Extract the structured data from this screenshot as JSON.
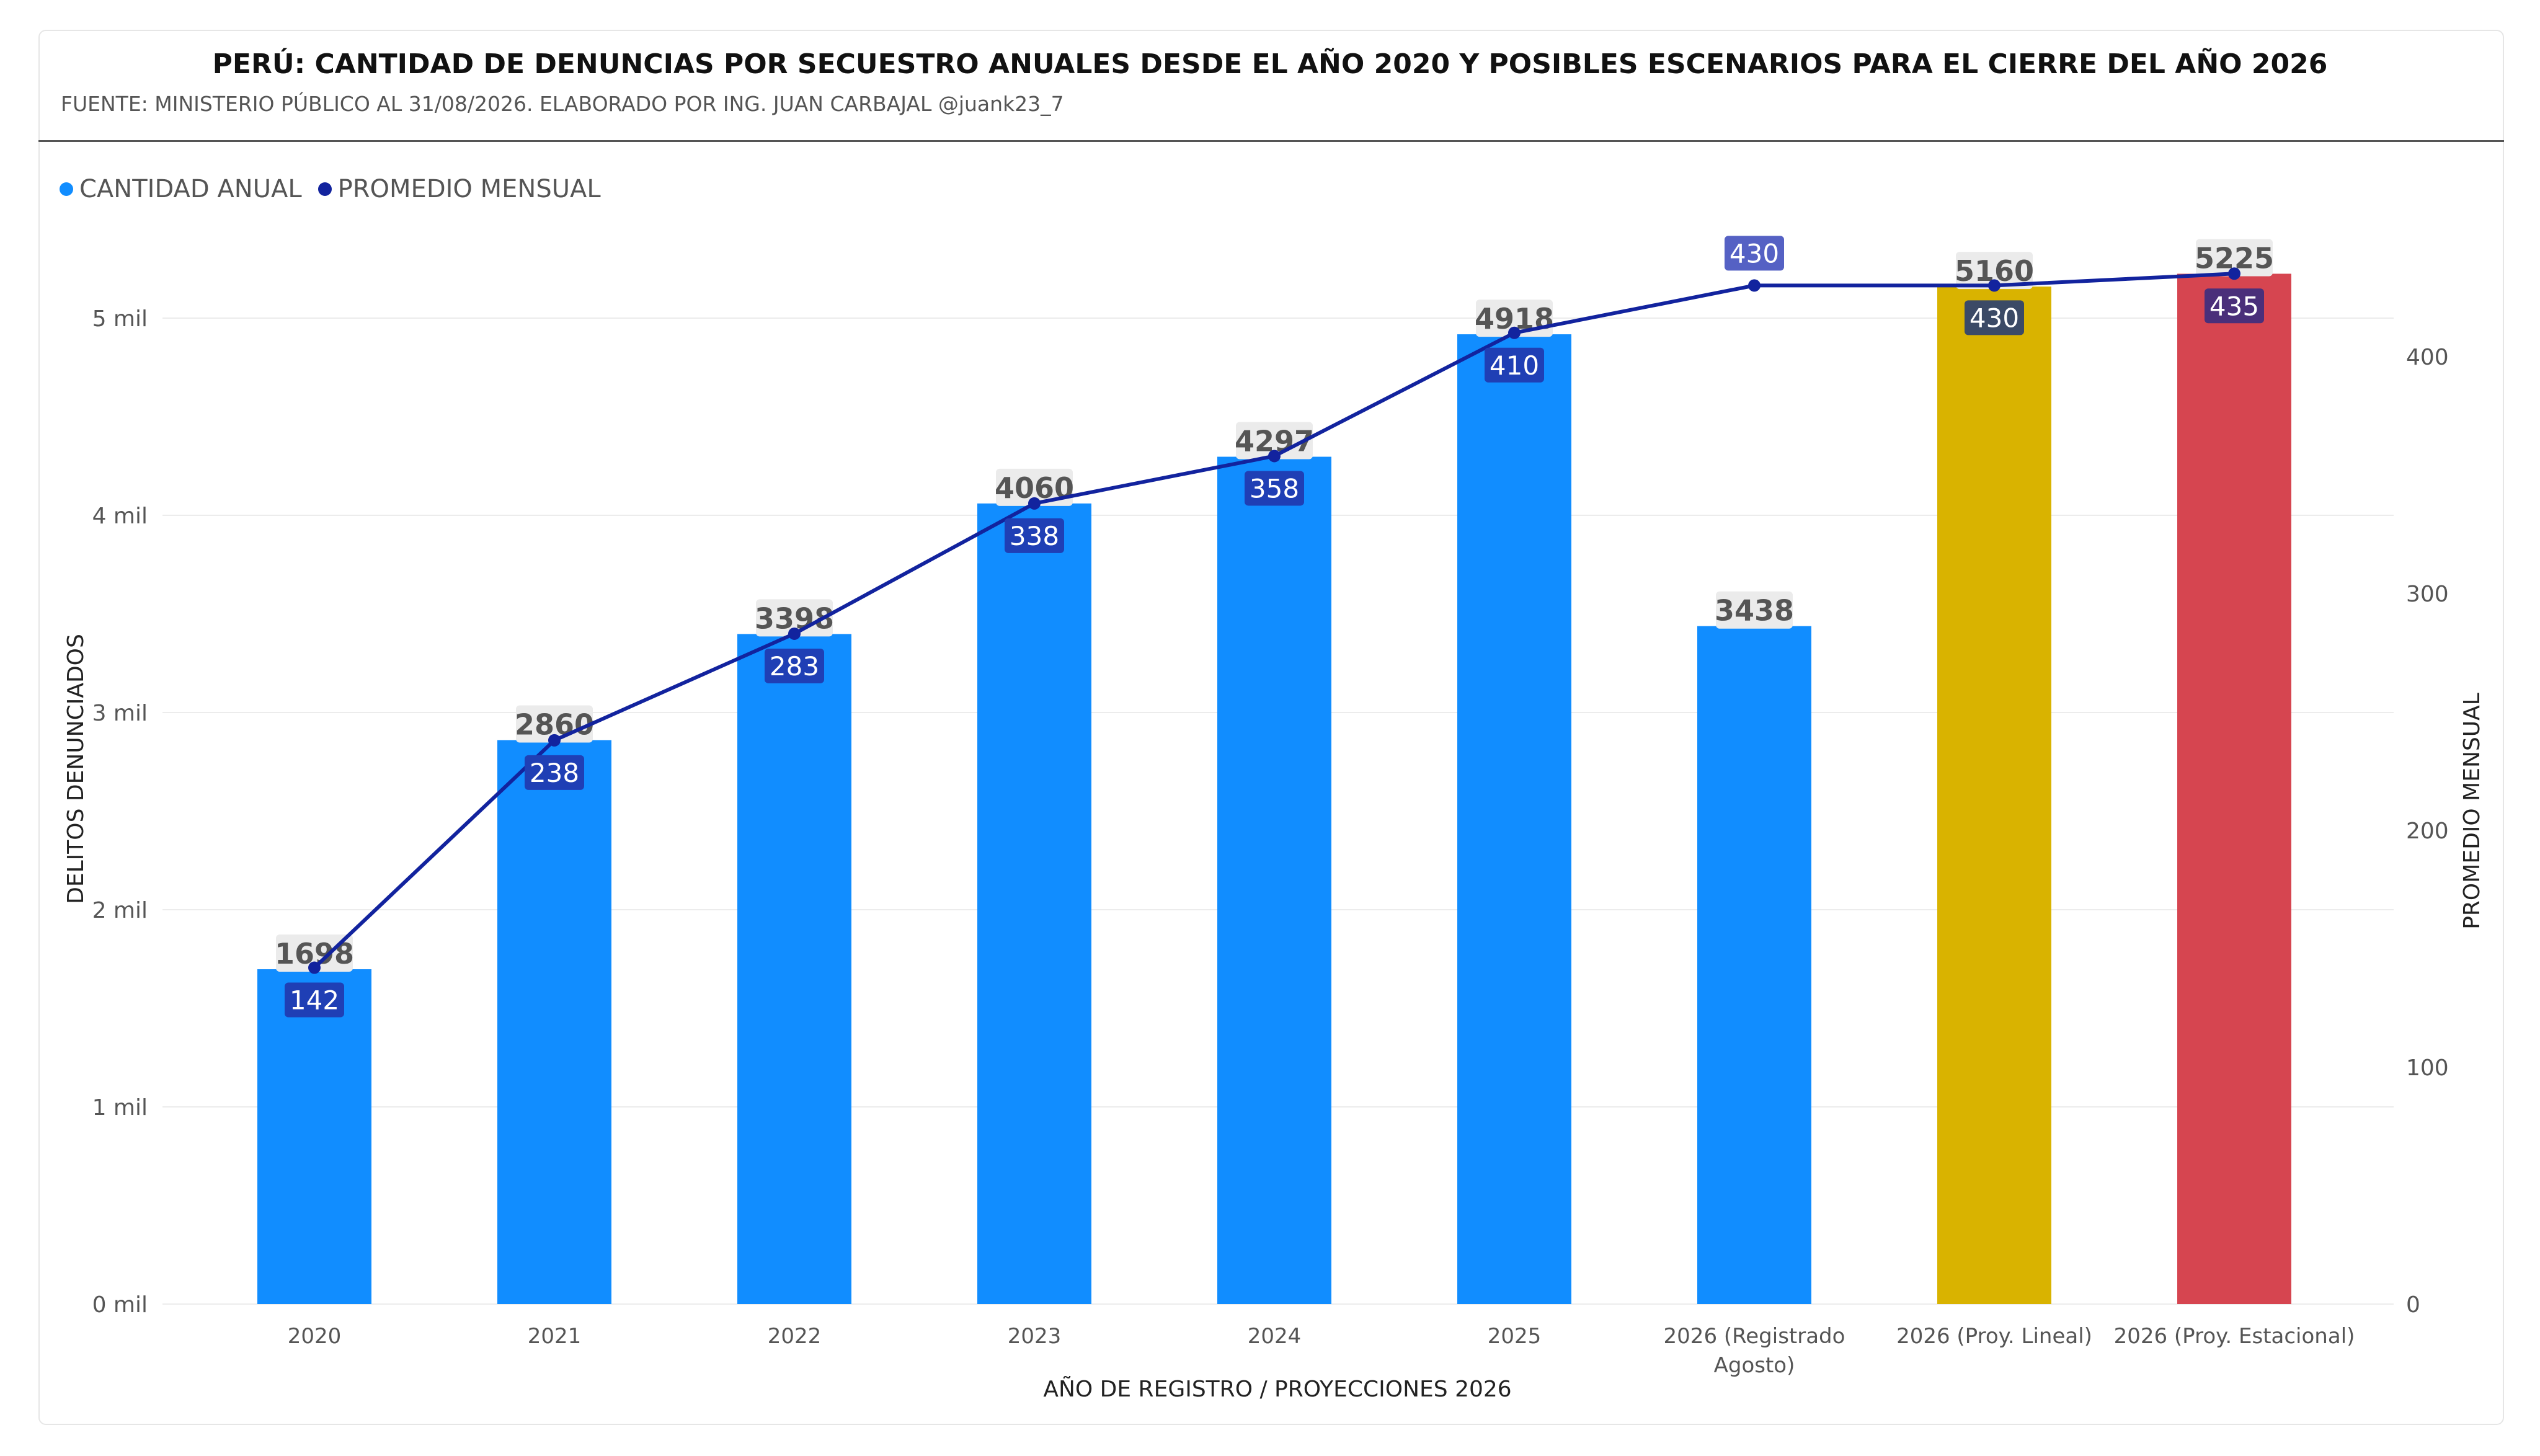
{
  "header": {
    "title": "PERÚ: CANTIDAD DE DENUNCIAS POR SECUESTRO ANUALES DESDE EL AÑO 2020 Y POSIBLES ESCENARIOS PARA EL CIERRE DEL AÑO 2026",
    "subtitle": "FUENTE: MINISTERIO PÚBLICO AL 31/08/2026. ELABORADO POR ING. JUAN CARBAJAL @juank23_7"
  },
  "legend": [
    {
      "label": "CANTIDAD ANUAL",
      "color": "#118DFF"
    },
    {
      "label": "PROMEDIO MENSUAL",
      "color": "#12239E"
    }
  ],
  "chart_data": {
    "type": "bar",
    "title": "PERÚ: CANTIDAD DE DENUNCIAS POR SECUESTRO ANUALES DESDE EL AÑO 2020 Y POSIBLES ESCENARIOS PARA EL CIERRE DEL AÑO 2026",
    "xlabel": "AÑO DE REGISTRO / PROYECCIONES 2026",
    "ylabel": "DELITOS DENUNCIADOS",
    "y2label": "PROMEDIO MENSUAL",
    "ylim": [
      0,
      5000
    ],
    "y2lim": [
      0,
      400
    ],
    "yticks": [
      "0 mil",
      "1 mil",
      "2 mil",
      "3 mil",
      "4 mil",
      "5 mil"
    ],
    "y2ticks": [
      "0",
      "100",
      "200",
      "300",
      "400"
    ],
    "grid": true,
    "legend_position": "top-left",
    "categories": [
      [
        "2020"
      ],
      [
        "2021"
      ],
      [
        "2022"
      ],
      [
        "2023"
      ],
      [
        "2024"
      ],
      [
        "2025"
      ],
      [
        "2026 (Registrado",
        "Agosto)"
      ],
      [
        "2026 (Proy. Lineal)"
      ],
      [
        "2026 (Proy. Estacional)"
      ]
    ],
    "series": [
      {
        "name": "CANTIDAD ANUAL",
        "type": "bar",
        "axis": "left",
        "values": [
          1698,
          2860,
          3398,
          4060,
          4297,
          4918,
          3438,
          5160,
          5225
        ],
        "labels": [
          "1698",
          "2860",
          "3398",
          "4060",
          "4297",
          "4918",
          "3438",
          "5160",
          "5225"
        ],
        "colors": [
          "#118DFF",
          "#118DFF",
          "#118DFF",
          "#118DFF",
          "#118DFF",
          "#118DFF",
          "#118DFF",
          "#D9B300",
          "#D64550"
        ]
      },
      {
        "name": "PROMEDIO MENSUAL",
        "type": "line",
        "axis": "right",
        "values": [
          142,
          238,
          283,
          338,
          358,
          410,
          430,
          430,
          435
        ],
        "labels": [
          "142",
          "238",
          "283",
          "338",
          "358",
          "410",
          "430",
          "430",
          "435"
        ],
        "color": "#12239E",
        "label_colors": [
          "#1F3FB5",
          "#1F3FB5",
          "#1F3FB5",
          "#1F3FB5",
          "#1F3FB5",
          "#1F3FB5",
          "#5561C4",
          "#3B4A66",
          "#4A2F7A"
        ]
      }
    ]
  }
}
